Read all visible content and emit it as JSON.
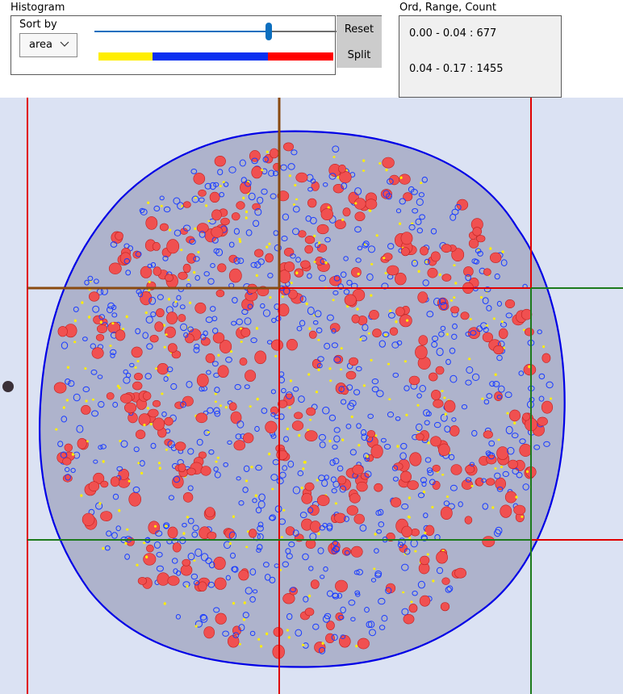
{
  "histogram": {
    "title": "Histogram",
    "sort_by_label": "Sort by",
    "sort_value": "area",
    "reset_label": "Reset",
    "split_label": "Split",
    "slider_value_fraction": 0.72,
    "bands": [
      {
        "name": "yellow",
        "color": "#ffee00"
      },
      {
        "name": "blue",
        "color": "#0a2ff0"
      },
      {
        "name": "red",
        "color": "#ff0000"
      }
    ]
  },
  "ord_panel": {
    "title": "Ord, Range, Count",
    "rows": [
      "0.00 - 0.04 : 677",
      "0.04 - 0.17 : 1455"
    ]
  },
  "micrograph": {
    "background": "#dbe2f3",
    "tissue_color": "#aeb3cc",
    "outline_color": "#0000e6",
    "cell_colors": {
      "small": "#ffee00",
      "medium": "#1a3cff",
      "large": "#f05050"
    },
    "grid_line_colors": {
      "red": "#e00000",
      "brown": "#8a4a10",
      "green": "#1c7a1c"
    }
  }
}
